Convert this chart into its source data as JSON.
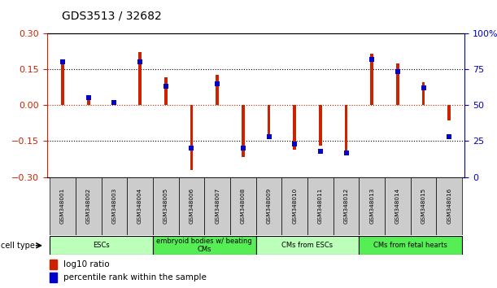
{
  "title": "GDS3513 / 32682",
  "samples": [
    "GSM348001",
    "GSM348002",
    "GSM348003",
    "GSM348004",
    "GSM348005",
    "GSM348006",
    "GSM348007",
    "GSM348008",
    "GSM348009",
    "GSM348010",
    "GSM348011",
    "GSM348012",
    "GSM348013",
    "GSM348014",
    "GSM348015",
    "GSM348016"
  ],
  "log10_ratio": [
    0.185,
    0.03,
    0.02,
    0.22,
    0.115,
    -0.27,
    0.125,
    -0.215,
    -0.13,
    -0.185,
    -0.17,
    -0.19,
    0.215,
    0.175,
    0.095,
    -0.065
  ],
  "percentile_rank": [
    80,
    55,
    52,
    80,
    63,
    20,
    65,
    20,
    28,
    23,
    18,
    17,
    82,
    73,
    62,
    28
  ],
  "ylim_left": [
    -0.3,
    0.3
  ],
  "ylim_right": [
    0,
    100
  ],
  "yticks_left": [
    -0.3,
    -0.15,
    0,
    0.15,
    0.3
  ],
  "yticks_right": [
    0,
    25,
    50,
    75,
    100
  ],
  "hline_dotted": [
    -0.15,
    0.15
  ],
  "hline_red_dotted": 0,
  "bar_color": "#cc2200",
  "dot_color": "#0000cc",
  "cell_type_groups": [
    {
      "label": "ESCs",
      "start": 0,
      "end": 3,
      "color": "#bbffbb"
    },
    {
      "label": "embryoid bodies w/ beating\nCMs",
      "start": 4,
      "end": 7,
      "color": "#55ee55"
    },
    {
      "label": "CMs from ESCs",
      "start": 8,
      "end": 11,
      "color": "#bbffbb"
    },
    {
      "label": "CMs from fetal hearts",
      "start": 12,
      "end": 15,
      "color": "#55ee55"
    }
  ],
  "legend_red_label": "log10 ratio",
  "legend_blue_label": "percentile rank within the sample",
  "cell_type_label": "cell type",
  "bar_width": 0.12,
  "dot_size": 18,
  "sample_box_color": "#cccccc",
  "left_axis_color": "#cc2200",
  "right_axis_color": "#0000cc"
}
